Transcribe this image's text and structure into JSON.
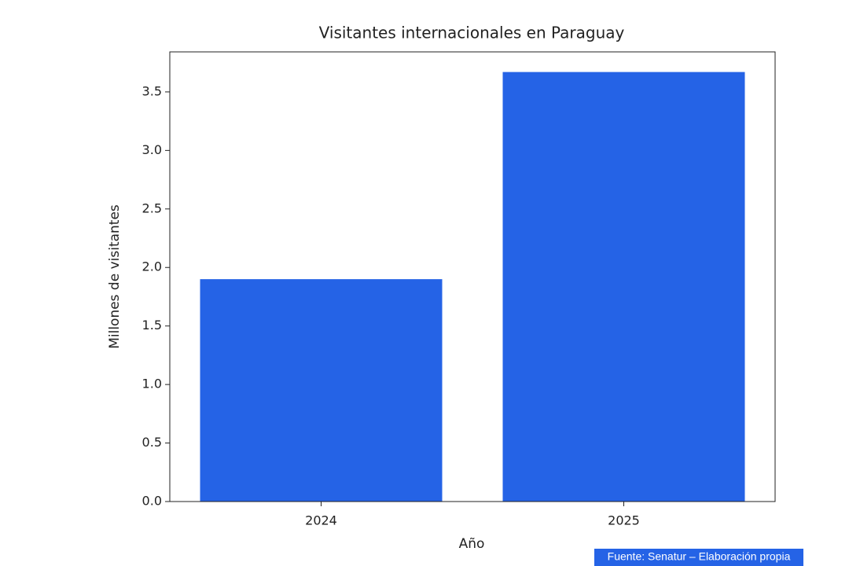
{
  "chart_data": {
    "type": "bar",
    "title": "Visitantes internacionales en Paraguay",
    "x_label": "Año",
    "y_label": "Millones de visitantes",
    "categories": [
      "2024",
      "2025"
    ],
    "values": [
      1.9,
      3.67
    ],
    "color": "#2563e6",
    "ylim": [
      0,
      3.842
    ],
    "yticks": [
      {
        "value": 0,
        "label": "0.0"
      },
      {
        "value": 0.5,
        "label": "0.5"
      },
      {
        "value": 1,
        "label": "1.0"
      },
      {
        "value": 1.5,
        "label": "1.5"
      },
      {
        "value": 2,
        "label": "2.0"
      },
      {
        "value": 2.5,
        "label": "2.5"
      },
      {
        "value": 3,
        "label": "3.0"
      },
      {
        "value": 3.5,
        "label": "3.5"
      }
    ],
    "grid": false,
    "source": "Fuente: Senatur – Elaboración propia"
  }
}
